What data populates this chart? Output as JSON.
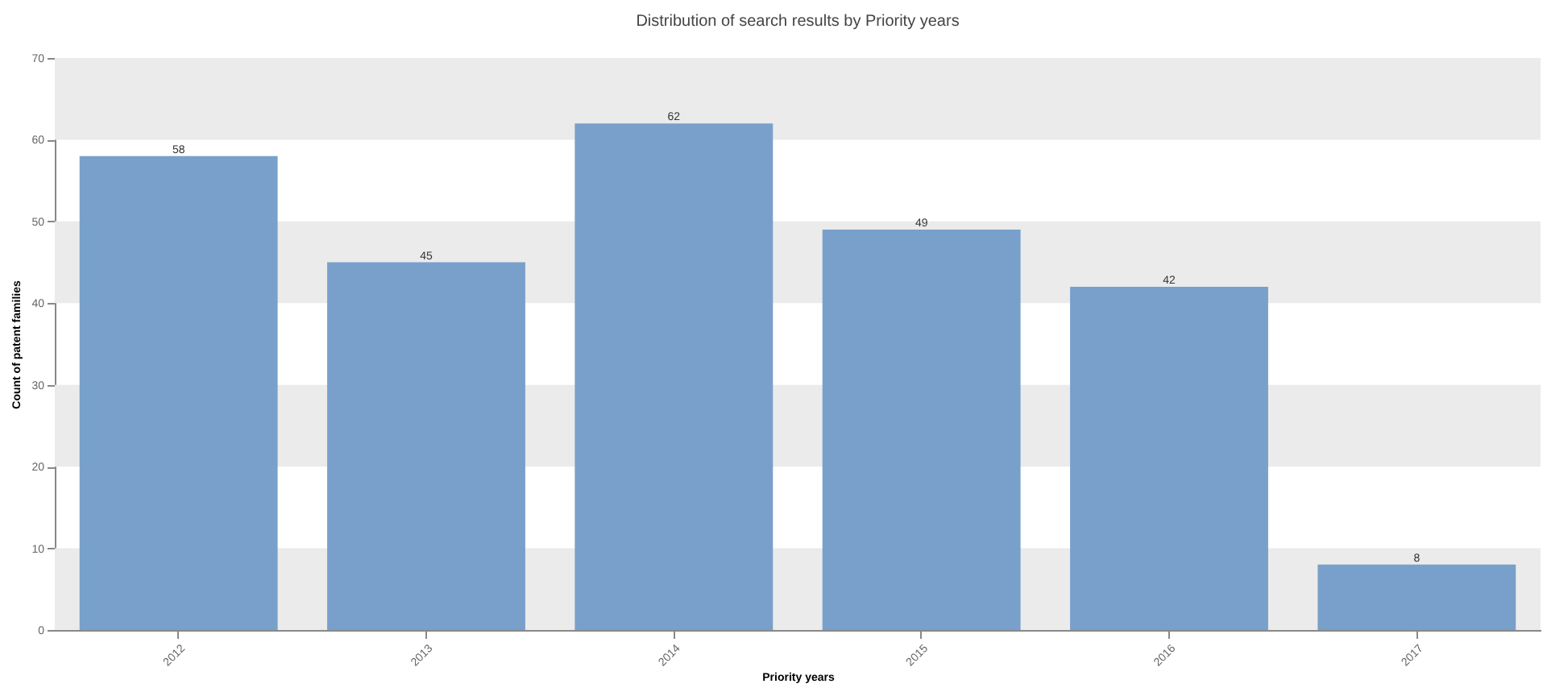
{
  "chart_data": {
    "type": "bar",
    "title": "Distribution of search results by Priority years",
    "xlabel": "Priority years",
    "ylabel": "Count of patent families",
    "categories": [
      "2012",
      "2013",
      "2014",
      "2015",
      "2016",
      "2017"
    ],
    "values": [
      58,
      45,
      62,
      49,
      42,
      8
    ],
    "color": "#78a0cb",
    "ylim": [
      0,
      70
    ],
    "yticks": [
      0,
      10,
      20,
      30,
      40,
      50,
      60,
      70
    ],
    "bands": [
      {
        "axis": "y",
        "from": 0,
        "to": 10,
        "color": "#ebebeb"
      },
      {
        "axis": "y",
        "from": 20,
        "to": 30,
        "color": "#ebebeb"
      },
      {
        "axis": "y",
        "from": 40,
        "to": 50,
        "color": "#ebebeb"
      },
      {
        "axis": "y",
        "from": 60,
        "to": 70,
        "color": "#ebebeb"
      }
    ],
    "data_labels": true
  }
}
